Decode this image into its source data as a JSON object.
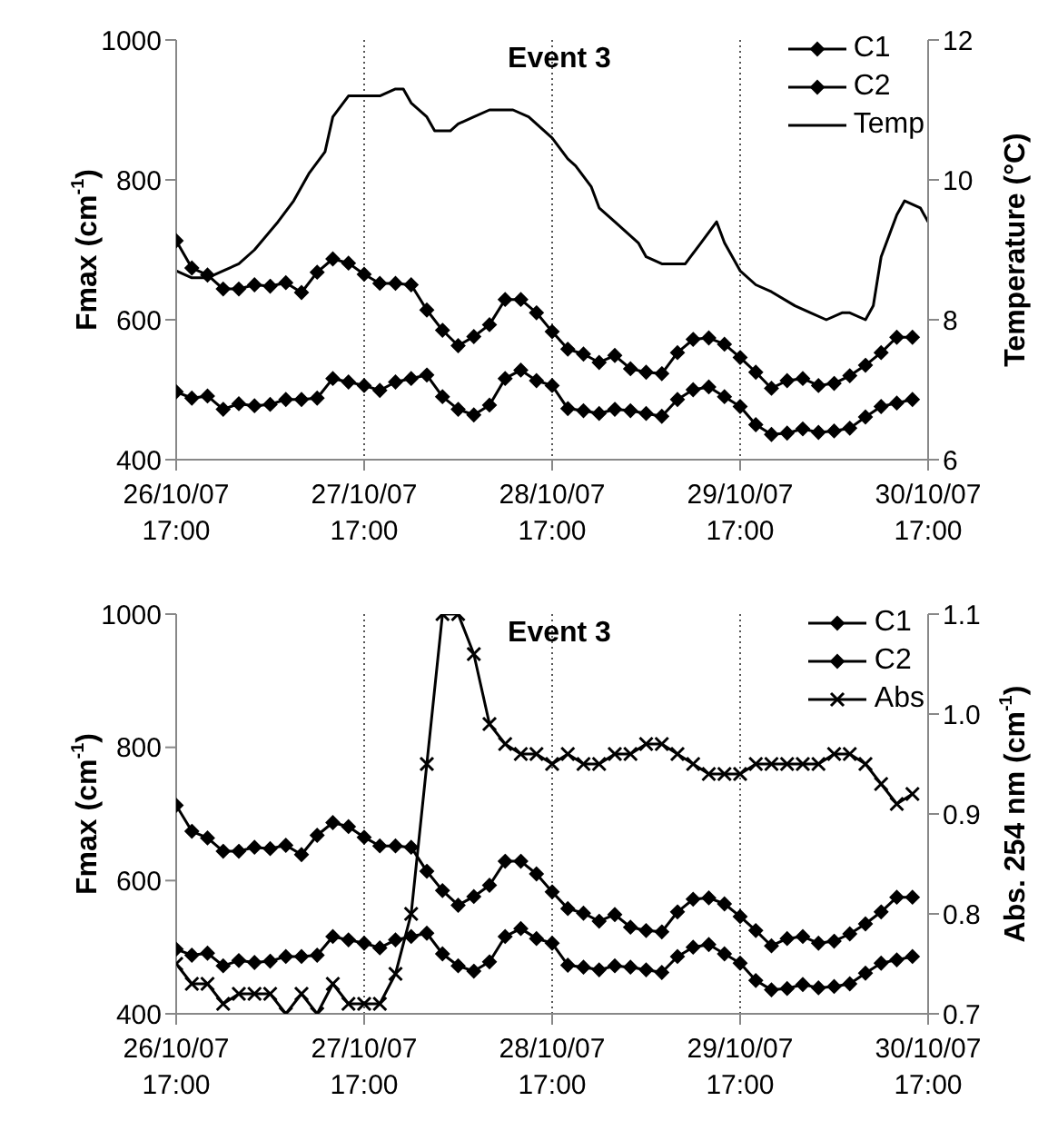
{
  "chart_data": [
    {
      "type": "line",
      "title": "Event 3",
      "ylabel": "Fmax (cm$^{-1}$)",
      "y2label": "Temperature (°C)",
      "grid": "x",
      "legend": "top right",
      "x": [
        "--10-26T17:00",
        "--10-26T19:00",
        "--10-26T21:00",
        "--10-26T23:00",
        "--10-27T01:00",
        "--10-27T03:00",
        "--10-27T05:00",
        "--10-27T07:00",
        "--10-27T09:00",
        "--10-27T11:00",
        "--10-27T13:00",
        "--10-27T15:00",
        "--10-27T17:00",
        "--10-27T19:00",
        "--10-27T21:00",
        "--10-27T23:00",
        "--10-28T01:00",
        "--10-28T03:00",
        "--10-28T05:00",
        "--10-28T07:00",
        "--10-28T09:00",
        "--10-28T11:00",
        "--10-28T13:00",
        "--10-28T15:00",
        "--10-28T17:00",
        "--10-28T19:00",
        "--10-28T21:00",
        "--10-28T23:00",
        "--10-29T01:00",
        "--10-29T03:00",
        "--10-29T05:00",
        "--10-29T07:00",
        "--10-29T09:00",
        "--10-29T11:00",
        "--10-29T13:00",
        "--10-29T15:00",
        "--10-29T17:00",
        "--10-29T19:00",
        "--10-29T21:00",
        "--10-29T23:00",
        "--10-30T01:00",
        "--10-30T03:00",
        "--10-30T05:00",
        "--10-30T07:00",
        "--10-30T09:00",
        "--10-30T11:00",
        "--10-30T13:00",
        "--10-30T15:00"
      ],
      "xlim": [
        "--10-26T17:00",
        "--10-30T17:00"
      ],
      "xticks": [
        {
          "value": "--10-26T17:00",
          "label": "26/10/07 17:00"
        },
        {
          "value": "--10-27T17:00",
          "label": "27/10/07 17:00"
        },
        {
          "value": "--10-28T17:00",
          "label": "28/10/07 17:00"
        },
        {
          "value": "--10-29T17:00",
          "label": "29/10/07 17:00"
        },
        {
          "value": "--10-30T17:00",
          "label": "30/10/07 17:00"
        }
      ],
      "ylim": [
        400,
        1000
      ],
      "yticks": [
        400,
        600,
        800,
        1000
      ],
      "y2lim": [
        6,
        12
      ],
      "y2ticks": [
        6,
        8,
        10,
        12
      ],
      "series": [
        {
          "name": "C1",
          "color": "#000000",
          "marker": "diamond",
          "values": [
            713,
            674,
            664,
            644,
            644,
            650,
            648,
            653,
            639,
            668,
            687,
            681,
            665,
            652,
            652,
            650,
            614,
            585,
            563,
            576,
            593,
            629,
            629,
            610,
            583,
            558,
            551,
            539,
            549,
            530,
            525,
            523,
            553,
            572,
            574,
            565,
            546,
            525,
            502,
            513,
            516,
            506,
            509,
            520,
            535,
            553,
            575,
            575
          ]
        },
        {
          "name": "C2",
          "color": "#000000",
          "marker": "diamond",
          "values": [
            497,
            488,
            491,
            472,
            480,
            477,
            479,
            486,
            486,
            488,
            516,
            511,
            506,
            499,
            511,
            516,
            521,
            490,
            472,
            464,
            478,
            516,
            528,
            513,
            506,
            473,
            470,
            466,
            472,
            470,
            466,
            462,
            486,
            500,
            504,
            490,
            476,
            450,
            436,
            438,
            444,
            439,
            441,
            445,
            461,
            476,
            481,
            486
          ]
        },
        {
          "name": "Temp",
          "color": "#000000",
          "marker": "none",
          "axis": "y2",
          "x": [
            "--10-26T17:00",
            "--10-26T19:00",
            "--10-26T21:00",
            "--10-26T23:00",
            "--10-27T01:00",
            "--10-27T03:00",
            "--10-27T06:00",
            "--10-27T08:00",
            "--10-27T10:00",
            "--10-27T12:00",
            "--10-27T13:00",
            "--10-27T15:00",
            "--10-27T16:00",
            "--10-27T19:00",
            "--10-27T21:00",
            "--10-27T22:00",
            "--10-27T23:00",
            "--10-28T01:00",
            "--10-28T02:00",
            "--10-28T04:00",
            "--10-28T05:00",
            "--10-28T07:00",
            "--10-28T09:00",
            "--10-28T10:00",
            "--10-28T12:00",
            "--10-28T14:00",
            "--10-28T15:00",
            "--10-28T17:00",
            "--10-28T19:00",
            "--10-28T20:00",
            "--10-28T22:00",
            "--10-28T23:00",
            "--10-29T01:00",
            "--10-29T04:00",
            "--10-29T05:00",
            "--10-29T07:00",
            "--10-29T10:00",
            "--10-29T12:00",
            "--10-29T14:00",
            "--10-29T15:00",
            "--10-29T17:00",
            "--10-29T19:00",
            "--10-29T21:00",
            "--10-30T00:00",
            "--10-30T02:00",
            "--10-30T04:00",
            "--10-30T06:00",
            "--10-30T07:00",
            "--10-30T09:00",
            "--10-30T10:00",
            "--10-30T11:00",
            "--10-30T13:00",
            "--10-30T14:00",
            "--10-30T16:00",
            "--10-30T17:00"
          ],
          "values": [
            8.7,
            8.6,
            8.6,
            8.7,
            8.8,
            9.0,
            9.4,
            9.7,
            10.1,
            10.4,
            10.9,
            11.2,
            11.2,
            11.2,
            11.3,
            11.3,
            11.1,
            10.9,
            10.7,
            10.7,
            10.8,
            10.9,
            11.0,
            11.0,
            11.0,
            10.9,
            10.8,
            10.6,
            10.3,
            10.2,
            9.9,
            9.6,
            9.4,
            9.1,
            8.9,
            8.8,
            8.8,
            9.1,
            9.4,
            9.1,
            8.7,
            8.5,
            8.4,
            8.2,
            8.1,
            8.0,
            8.1,
            8.1,
            8.0,
            8.2,
            8.9,
            9.5,
            9.7,
            9.6,
            9.4
          ]
        }
      ]
    },
    {
      "type": "line",
      "title": "Event 3",
      "ylabel": "Fmax (cm$^{-1}$)",
      "y2label": "Abs. 254 nm (cm$^{-1}$)",
      "grid": "x",
      "legend": "top right",
      "x": [
        "--10-26T17:00",
        "--10-26T19:00",
        "--10-26T21:00",
        "--10-26T23:00",
        "--10-27T01:00",
        "--10-27T03:00",
        "--10-27T05:00",
        "--10-27T07:00",
        "--10-27T09:00",
        "--10-27T11:00",
        "--10-27T13:00",
        "--10-27T15:00",
        "--10-27T17:00",
        "--10-27T19:00",
        "--10-27T21:00",
        "--10-27T23:00",
        "--10-28T01:00",
        "--10-28T03:00",
        "--10-28T05:00",
        "--10-28T07:00",
        "--10-28T09:00",
        "--10-28T11:00",
        "--10-28T13:00",
        "--10-28T15:00",
        "--10-28T17:00",
        "--10-28T19:00",
        "--10-28T21:00",
        "--10-28T23:00",
        "--10-29T01:00",
        "--10-29T03:00",
        "--10-29T05:00",
        "--10-29T07:00",
        "--10-29T09:00",
        "--10-29T11:00",
        "--10-29T13:00",
        "--10-29T15:00",
        "--10-29T17:00",
        "--10-29T19:00",
        "--10-29T21:00",
        "--10-29T23:00",
        "--10-30T01:00",
        "--10-30T03:00",
        "--10-30T05:00",
        "--10-30T07:00",
        "--10-30T09:00",
        "--10-30T11:00",
        "--10-30T13:00",
        "--10-30T15:00"
      ],
      "xlim": [
        "--10-26T17:00",
        "--10-30T17:00"
      ],
      "xticks": [
        {
          "value": "--10-26T17:00",
          "label": "26/10/07 17:00"
        },
        {
          "value": "--10-27T17:00",
          "label": "27/10/07 17:00"
        },
        {
          "value": "--10-28T17:00",
          "label": "28/10/07 17:00"
        },
        {
          "value": "--10-29T17:00",
          "label": "29/10/07 17:00"
        },
        {
          "value": "--10-30T17:00",
          "label": "30/10/07 17:00"
        }
      ],
      "ylim": [
        400,
        1000
      ],
      "yticks": [
        400,
        600,
        800,
        1000
      ],
      "y2lim": [
        0.7,
        1.1
      ],
      "y2ticks": [
        0.7,
        0.8,
        0.9,
        {
          "value": 1.0,
          "label": "1.0"
        },
        1.1
      ],
      "series": [
        {
          "name": "C1",
          "color": "#000000",
          "marker": "diamond",
          "values": [
            713,
            674,
            664,
            644,
            644,
            650,
            648,
            653,
            639,
            668,
            687,
            681,
            665,
            652,
            652,
            650,
            614,
            585,
            563,
            576,
            593,
            629,
            629,
            610,
            583,
            558,
            551,
            539,
            549,
            530,
            525,
            523,
            553,
            572,
            574,
            565,
            546,
            525,
            502,
            513,
            516,
            506,
            509,
            520,
            535,
            553,
            575,
            575
          ]
        },
        {
          "name": "C2",
          "color": "#000000",
          "marker": "diamond",
          "values": [
            497,
            488,
            491,
            472,
            480,
            477,
            479,
            486,
            486,
            488,
            516,
            511,
            506,
            499,
            511,
            516,
            521,
            490,
            472,
            464,
            478,
            516,
            528,
            513,
            506,
            473,
            470,
            466,
            472,
            470,
            466,
            462,
            486,
            500,
            504,
            490,
            476,
            450,
            436,
            438,
            444,
            439,
            441,
            445,
            461,
            476,
            481,
            486
          ]
        },
        {
          "name": "Abs",
          "color": "#000000",
          "marker": "cross",
          "axis": "y2",
          "values": [
            0.75,
            0.73,
            0.73,
            0.71,
            0.72,
            0.72,
            0.72,
            0.7,
            0.72,
            0.7,
            0.73,
            0.71,
            0.71,
            0.71,
            0.74,
            0.8,
            0.95,
            1.1,
            1.1,
            1.06,
            0.99,
            0.97,
            0.96,
            0.96,
            0.95,
            0.96,
            0.95,
            0.95,
            0.96,
            0.96,
            0.97,
            0.97,
            0.96,
            0.95,
            0.94,
            0.94,
            0.94,
            0.95,
            0.95,
            0.95,
            0.95,
            0.95,
            0.96,
            0.96,
            0.95,
            0.93,
            0.91,
            0.92
          ]
        }
      ]
    }
  ]
}
